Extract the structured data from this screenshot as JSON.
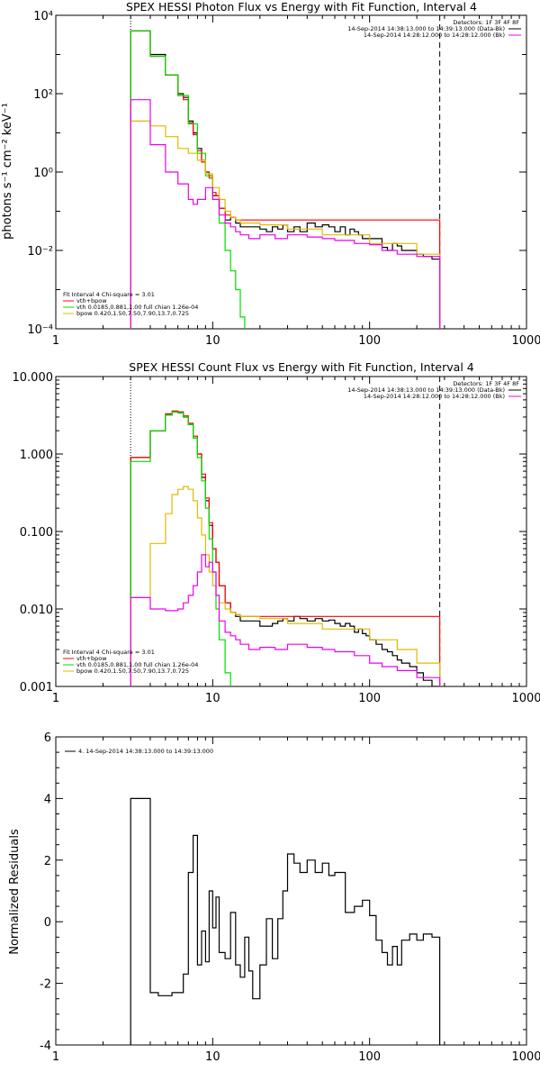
{
  "colors": {
    "data": "#000000",
    "total": "#ff0000",
    "vth": "#00dd00",
    "bpow": "#ddbb00",
    "background": "#ee00ee",
    "axes": "#000000"
  },
  "chart_data": [
    {
      "id": "photon",
      "type": "line",
      "title": "SPEX HESSI Photon Flux vs Energy with Fit Function, Interval 4",
      "xlabel": "",
      "ylabel": "photons s⁻¹ cm⁻² keV⁻¹",
      "xlog": true,
      "ylog": true,
      "xlim": [
        1,
        1000
      ],
      "ylim": [
        0.0001,
        10000
      ],
      "xtick_labels": [
        "1",
        "10",
        "100",
        "1000"
      ],
      "ytick_labels": [
        "10⁻⁴",
        "10⁻²",
        "10⁰",
        "10²",
        "10⁴"
      ],
      "legend_header": "Detectors: 1F 3F 4F 8F",
      "legend_top": [
        {
          "label": "14-Sep-2014 14:38:13.000 to 14:39:13.000 (Data-Bk)",
          "color": "#000000"
        },
        {
          "label": "14-Sep-2014 14:28:12.000 to 14:28:12.000 (Bk)",
          "color": "#ee00ee"
        }
      ],
      "legend_bottom_header": "Fit Interval 4   Chi-square = 3.01",
      "legend_bottom": [
        {
          "label": "vth+bpow",
          "color": "#ff0000"
        },
        {
          "label": "vth 0.0185,0.881,1.00  full chian 1.26e-04",
          "color": "#00dd00"
        },
        {
          "label": "bpow 0.420,1.50,7.50,7.90,13.7,0.725",
          "color": "#ddbb00"
        }
      ],
      "vlines": [
        {
          "x": 3,
          "style": "dotted"
        },
        {
          "x": 280,
          "style": "dashed"
        }
      ],
      "series": [
        {
          "name": "Data-Bk",
          "color": "#000000",
          "x": [
            3,
            4,
            5,
            5.5,
            6,
            6.5,
            7,
            7.5,
            8,
            8.5,
            9,
            9.5,
            10,
            10.5,
            11,
            12,
            13,
            14,
            15,
            17,
            20,
            22,
            24,
            26,
            28,
            30,
            33,
            36,
            40,
            45,
            50,
            55,
            60,
            65,
            70,
            75,
            80,
            85,
            90,
            95,
            100,
            110,
            120,
            130,
            140,
            150,
            160,
            180,
            200,
            220,
            250,
            280
          ],
          "y": [
            4000,
            1000,
            300,
            300,
            100,
            80,
            20,
            10,
            4,
            2,
            1,
            0.8,
            0.25,
            0.25,
            0.12,
            0.06,
            0.07,
            0.05,
            0.04,
            0.04,
            0.035,
            0.03,
            0.04,
            0.035,
            0.045,
            0.03,
            0.04,
            0.03,
            0.05,
            0.04,
            0.045,
            0.04,
            0.03,
            0.04,
            0.025,
            0.035,
            0.03,
            0.025,
            0.02,
            0.02,
            0.02,
            0.02,
            0.012,
            0.01,
            0.015,
            0.013,
            0.01,
            0.01,
            0.008,
            0.007,
            0.006,
            0.006
          ]
        },
        {
          "name": "vth+bpow",
          "color": "#ff0000",
          "x": [
            3,
            4,
            5,
            5.5,
            6,
            6.5,
            7,
            7.5,
            8,
            8.5,
            9,
            9.5,
            10,
            10.5,
            11,
            12,
            13,
            14,
            15,
            280
          ],
          "y": [
            4000,
            900,
            300,
            300,
            90,
            70,
            18,
            9,
            3.5,
            1.8,
            1,
            0.7,
            0.3,
            0.25,
            0.12,
            0.08,
            0.07,
            0.06,
            0.06,
            0.006
          ]
        },
        {
          "name": "vth",
          "color": "#00dd00",
          "x": [
            3,
            4,
            5,
            6,
            7,
            8,
            9,
            10,
            11,
            12,
            13,
            14,
            15,
            16
          ],
          "y": [
            4000,
            900,
            300,
            90,
            17,
            3,
            0.8,
            0.2,
            0.05,
            0.01,
            0.003,
            0.001,
            0.0002,
            0.0001
          ]
        },
        {
          "name": "bpow",
          "color": "#ddbb00",
          "x": [
            3,
            4,
            5,
            6,
            7,
            7.5,
            8,
            9,
            10,
            11,
            12,
            13,
            14,
            15,
            20,
            30,
            50,
            100,
            200,
            280
          ],
          "y": [
            20,
            15,
            8,
            4,
            3,
            3,
            2,
            0.9,
            0.4,
            0.2,
            0.1,
            0.07,
            0.06,
            0.05,
            0.045,
            0.035,
            0.025,
            0.015,
            0.008,
            0.006
          ]
        },
        {
          "name": "Bk",
          "color": "#ee00ee",
          "x": [
            3,
            4,
            5,
            6,
            7,
            7.5,
            8,
            9,
            10,
            11,
            12,
            13,
            14,
            15,
            17,
            20,
            25,
            30,
            40,
            50,
            60,
            80,
            100,
            120,
            150,
            200,
            280
          ],
          "y": [
            70,
            5,
            1,
            0.5,
            0.2,
            0.15,
            0.2,
            0.4,
            0.2,
            0.08,
            0.05,
            0.04,
            0.03,
            0.025,
            0.02,
            0.025,
            0.02,
            0.025,
            0.022,
            0.02,
            0.018,
            0.015,
            0.014,
            0.01,
            0.008,
            0.007,
            0.005
          ]
        }
      ]
    },
    {
      "id": "count",
      "type": "line",
      "title": "SPEX HESSI Count Flux vs Energy with Fit Function, Interval 4",
      "xlabel": "",
      "ylabel": "",
      "xlog": true,
      "ylog": true,
      "xlim": [
        1,
        1000
      ],
      "ylim": [
        0.001,
        10
      ],
      "xtick_labels": [
        "1",
        "10",
        "100",
        "1000"
      ],
      "ytick_labels": [
        "0.001",
        "0.010",
        "0.100",
        "1.000",
        "10.000"
      ],
      "legend_header": "Detectors: 1F 3F 4F 8F",
      "legend_top": [
        {
          "label": "14-Sep-2014 14:38:13.000 to 14:39:13.000 (Data-Bk)",
          "color": "#000000"
        },
        {
          "label": "14-Sep-2014 14:28:12.000 to 14:28:12.000 (Bk)",
          "color": "#ee00ee"
        }
      ],
      "legend_bottom_header": "Fit Interval 4   Chi-square = 3.01",
      "legend_bottom": [
        {
          "label": "vth+bpow",
          "color": "#ff0000"
        },
        {
          "label": "vth 0.0185,0.881,1.00  full chian 1.26e-04",
          "color": "#00dd00"
        },
        {
          "label": "bpow 0.420,1.50,7.50,7.90,13.7,0.725",
          "color": "#ddbb00"
        }
      ],
      "vlines": [
        {
          "x": 3,
          "style": "dotted"
        },
        {
          "x": 280,
          "style": "dashed"
        }
      ],
      "series": [
        {
          "name": "Data-Bk",
          "color": "#000000",
          "x": [
            3,
            4,
            5,
            5.5,
            6,
            6.5,
            7,
            7.5,
            8,
            8.5,
            9,
            9.5,
            10,
            10.5,
            11,
            12,
            13,
            14,
            15,
            17,
            20,
            22,
            24,
            26,
            28,
            30,
            33,
            36,
            40,
            45,
            50,
            55,
            60,
            65,
            70,
            75,
            80,
            85,
            90,
            95,
            100,
            110,
            120,
            130,
            140,
            150,
            160,
            180,
            200,
            220,
            250,
            280
          ],
          "y": [
            0.9,
            2.0,
            3.2,
            3.5,
            3.4,
            3.0,
            2.4,
            1.6,
            1.0,
            0.5,
            0.25,
            0.12,
            0.06,
            0.04,
            0.02,
            0.012,
            0.009,
            0.008,
            0.007,
            0.007,
            0.006,
            0.006,
            0.0065,
            0.007,
            0.0075,
            0.007,
            0.008,
            0.0075,
            0.007,
            0.0075,
            0.007,
            0.0072,
            0.0065,
            0.006,
            0.0065,
            0.006,
            0.005,
            0.0055,
            0.0048,
            0.0045,
            0.004,
            0.0035,
            0.003,
            0.0028,
            0.0025,
            0.0022,
            0.002,
            0.0018,
            0.0015,
            0.0012,
            0.001,
            0.001
          ]
        },
        {
          "name": "vth+bpow",
          "color": "#ff0000",
          "x": [
            3,
            4,
            5,
            5.5,
            6,
            6.5,
            7,
            7.5,
            8,
            8.5,
            9,
            9.5,
            10,
            10.5,
            11,
            12,
            13,
            14,
            15,
            280
          ],
          "y": [
            0.9,
            2.0,
            3.3,
            3.6,
            3.5,
            3.1,
            2.5,
            1.7,
            1.0,
            0.55,
            0.27,
            0.13,
            0.06,
            0.04,
            0.02,
            0.012,
            0.009,
            0.0085,
            0.008,
            0.001
          ]
        },
        {
          "name": "vth",
          "color": "#00dd00",
          "x": [
            3,
            4,
            5,
            5.5,
            6,
            6.5,
            7,
            7.5,
            8,
            8.5,
            9,
            9.5,
            10,
            10.5,
            11,
            12,
            13
          ],
          "y": [
            0.8,
            2.0,
            3.2,
            3.5,
            3.4,
            3.0,
            2.4,
            1.6,
            0.9,
            0.45,
            0.2,
            0.08,
            0.03,
            0.01,
            0.004,
            0.0015,
            0.001
          ]
        },
        {
          "name": "bpow",
          "color": "#ddbb00",
          "x": [
            3,
            4,
            5,
            5.5,
            6,
            6.5,
            7,
            7.5,
            8,
            8.5,
            9,
            9.5,
            10,
            10.5,
            11,
            12,
            13,
            14,
            15,
            20,
            30,
            50,
            100,
            150,
            200,
            280
          ],
          "y": [
            0.014,
            0.07,
            0.17,
            0.3,
            0.35,
            0.38,
            0.35,
            0.25,
            0.15,
            0.09,
            0.05,
            0.03,
            0.02,
            0.015,
            0.012,
            0.01,
            0.009,
            0.0085,
            0.008,
            0.0075,
            0.0065,
            0.0055,
            0.004,
            0.003,
            0.002,
            0.001
          ]
        },
        {
          "name": "Bk",
          "color": "#ee00ee",
          "x": [
            3,
            4,
            5,
            5.5,
            6,
            6.5,
            7,
            7.5,
            8,
            8.5,
            9,
            9.5,
            10,
            10.5,
            11,
            12,
            13,
            14,
            15,
            17,
            20,
            25,
            30,
            40,
            50,
            60,
            80,
            100,
            120,
            150,
            200,
            280
          ],
          "y": [
            0.014,
            0.01,
            0.0095,
            0.0095,
            0.01,
            0.012,
            0.015,
            0.02,
            0.03,
            0.05,
            0.035,
            0.04,
            0.03,
            0.015,
            0.007,
            0.005,
            0.0045,
            0.004,
            0.0035,
            0.003,
            0.0032,
            0.003,
            0.0035,
            0.0032,
            0.003,
            0.0028,
            0.0025,
            0.002,
            0.0018,
            0.0016,
            0.0013,
            0.001
          ]
        }
      ]
    },
    {
      "id": "residuals",
      "type": "line",
      "title": "",
      "xlabel": "",
      "ylabel": "Normalized Residuals",
      "xlog": true,
      "ylog": false,
      "xlim": [
        1,
        1000
      ],
      "ylim": [
        -4,
        6
      ],
      "xtick_labels": [
        "1",
        "10",
        "100",
        "1000"
      ],
      "ytick_labels": [
        "-4",
        "-2",
        "0",
        "2",
        "4",
        "6"
      ],
      "ytick_values": [
        -4,
        -2,
        0,
        2,
        4,
        6
      ],
      "legend_top_left": "4. 14-Sep-2014 14:38:13.000 to 14:39:13.000",
      "series": [
        {
          "name": "residual",
          "color": "#000000",
          "x": [
            3,
            4,
            4.5,
            5,
            5.5,
            6,
            6.5,
            7,
            7.5,
            8,
            8.5,
            9,
            9.5,
            10,
            10.5,
            11,
            12,
            13,
            14,
            15,
            16,
            17,
            18,
            20,
            22,
            24,
            26,
            28,
            30,
            33,
            36,
            40,
            45,
            50,
            55,
            60,
            65,
            70,
            80,
            90,
            100,
            110,
            120,
            130,
            140,
            150,
            160,
            180,
            200,
            220,
            250,
            280
          ],
          "y": [
            4.0,
            -2.3,
            -2.4,
            -2.4,
            -2.3,
            -2.3,
            -1.7,
            1.6,
            2.8,
            -1.4,
            -0.3,
            -1.3,
            1.0,
            -0.2,
            0.8,
            -1.0,
            -1.2,
            0.3,
            -1.4,
            -1.8,
            -0.5,
            -1.6,
            -2.5,
            -1.4,
            0.1,
            -1.2,
            0.1,
            1.0,
            2.2,
            1.9,
            1.6,
            2.0,
            1.6,
            1.9,
            1.5,
            1.6,
            1.6,
            0.3,
            0.5,
            0.7,
            0.2,
            -0.6,
            -1.0,
            -1.4,
            -0.8,
            -1.4,
            -0.6,
            -0.4,
            -0.6,
            -0.4,
            -0.5,
            -0.5
          ]
        }
      ]
    }
  ]
}
